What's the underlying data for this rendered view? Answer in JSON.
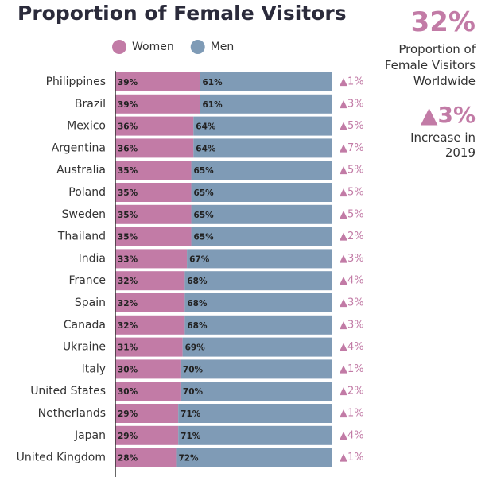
{
  "chart_data": {
    "type": "stacked-bar",
    "orientation": "horizontal",
    "title": "Proportion of Female Visitors",
    "categories": [
      "Philippines",
      "Brazil",
      "Mexico",
      "Argentina",
      "Australia",
      "Poland",
      "Sweden",
      "Thailand",
      "India",
      "France",
      "Spain",
      "Canada",
      "Ukraine",
      "Italy",
      "United States",
      "Netherlands",
      "Japan",
      "United Kingdom"
    ],
    "xlim": [
      0,
      100
    ],
    "series": [
      {
        "name": "Women",
        "color": "#c27ba6",
        "values": [
          39,
          39,
          36,
          36,
          35,
          35,
          35,
          35,
          33,
          32,
          32,
          32,
          31,
          30,
          30,
          29,
          29,
          28
        ],
        "value_labels": [
          "39%",
          "39%",
          "36%",
          "36%",
          "35%",
          "35%",
          "35%",
          "35%",
          "33%",
          "32%",
          "32%",
          "32%",
          "31%",
          "30%",
          "30%",
          "29%",
          "29%",
          "28%"
        ]
      },
      {
        "name": "Men",
        "color": "#7f9bb6",
        "values": [
          61,
          61,
          64,
          64,
          65,
          65,
          65,
          65,
          67,
          68,
          68,
          68,
          69,
          70,
          70,
          71,
          71,
          72
        ],
        "value_labels": [
          "61%",
          "61%",
          "64%",
          "64%",
          "65%",
          "65%",
          "65%",
          "65%",
          "67%",
          "68%",
          "68%",
          "68%",
          "69%",
          "70%",
          "70%",
          "71%",
          "71%",
          "72%"
        ]
      }
    ],
    "annotations": [
      "▲1%",
      "▲3%",
      "▲5%",
      "▲7%",
      "▲5%",
      "▲5%",
      "▲5%",
      "▲2%",
      "▲3%",
      "▲4%",
      "▲3%",
      "▲3%",
      "▲4%",
      "▲1%",
      "▲2%",
      "▲1%",
      "▲4%",
      "▲1%"
    ],
    "summary": {
      "share": "32%",
      "share_text": "Proportion of Female Visitors Worldwide",
      "increase": "▲3%",
      "increase_text": "Increase in 2019"
    }
  }
}
